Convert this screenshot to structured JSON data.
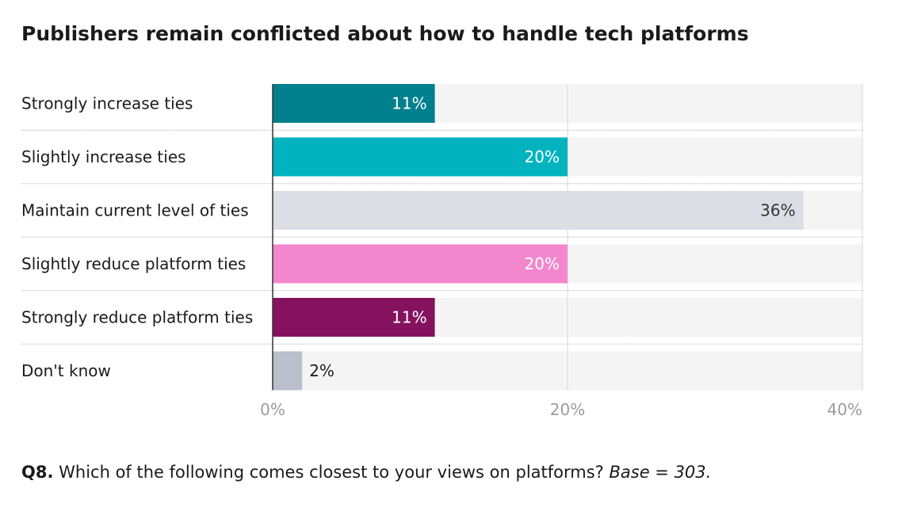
{
  "chart_data": {
    "type": "bar",
    "orientation": "horizontal",
    "title": "Publishers remain conflicted about how to handle tech platforms",
    "categories": [
      "Strongly increase ties",
      "Slightly increase ties",
      "Maintain current level of ties",
      "Slightly reduce platform ties",
      "Strongly reduce platform ties",
      "Don't know"
    ],
    "values": [
      11,
      20,
      36,
      20,
      11,
      2
    ],
    "value_labels": [
      "11%",
      "20%",
      "36%",
      "20%",
      "11%",
      "2%"
    ],
    "colors": [
      "#007f8c",
      "#00b3bf",
      "#dcdee6",
      "#f387cd",
      "#85125e",
      "#b9bfcb"
    ],
    "label_on_dark": [
      true,
      true,
      false,
      true,
      true,
      false
    ],
    "xlim": [
      0,
      40
    ],
    "xticks": [
      0,
      20,
      40
    ],
    "xtick_labels": [
      "0%",
      "20%",
      "40%"
    ],
    "xlabel": "",
    "ylabel": ""
  },
  "footnote": {
    "question_number": "Q8.",
    "question_text": " Which of the following comes closest to your views on platforms? ",
    "base": "Base = 303."
  }
}
